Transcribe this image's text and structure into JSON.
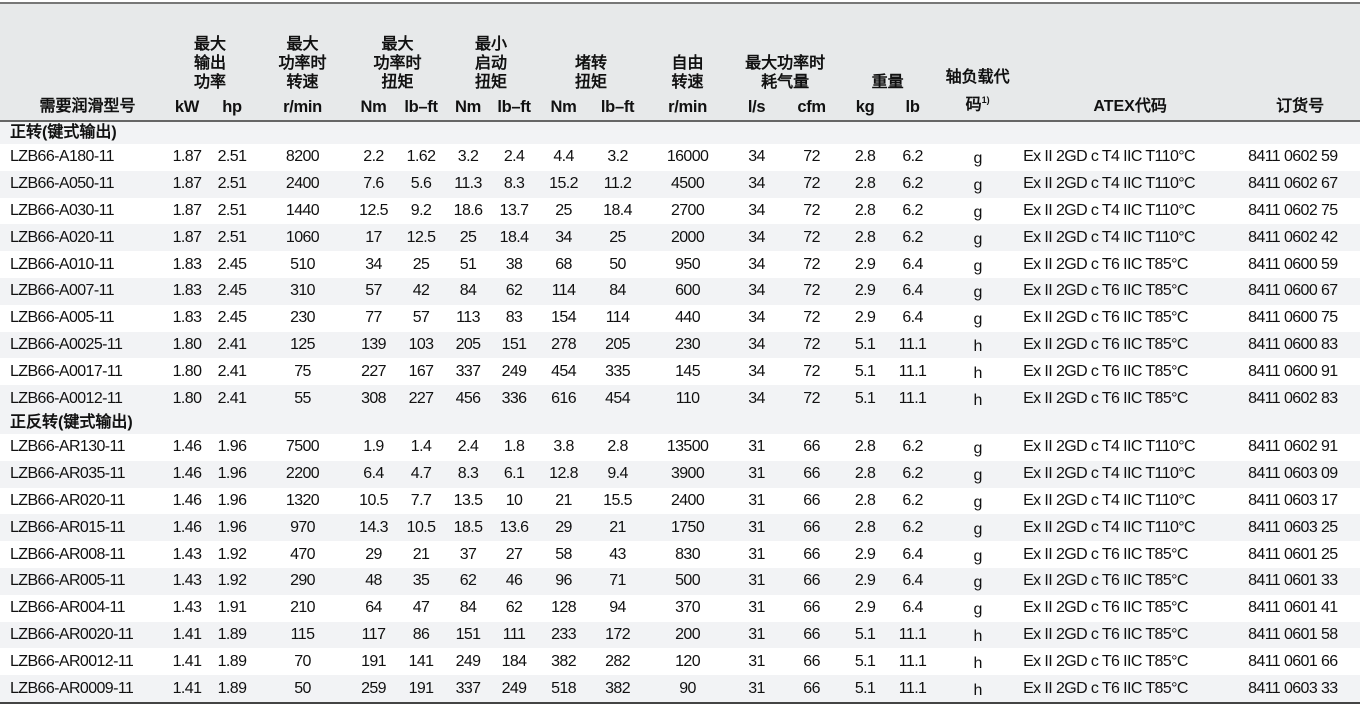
{
  "header": {
    "model": "需要润滑型号",
    "groups": [
      {
        "label": "最大\n输出\n功率",
        "units": [
          "kW",
          "hp"
        ]
      },
      {
        "label": "最大\n功率时\n转速",
        "units": [
          "r/min"
        ]
      },
      {
        "label": "最大\n功率时\n扭矩",
        "units": [
          "Nm",
          "lb–ft"
        ]
      },
      {
        "label": "最小\n启动\n扭矩",
        "units": [
          "Nm",
          "lb–ft"
        ]
      },
      {
        "label": "堵转\n扭矩\n",
        "units": [
          "Nm",
          "lb–ft"
        ]
      },
      {
        "label": "自由\n转速\n",
        "units": [
          "r/min"
        ]
      },
      {
        "label": "最大功率时\n耗气量\n",
        "units": [
          "l/s",
          "cfm"
        ]
      },
      {
        "label": "重量\n",
        "units": [
          "kg",
          "lb"
        ]
      }
    ],
    "shaft_code": "轴负载代码",
    "shaft_code_note": "1)",
    "atex": "ATEX代码",
    "order": "订货号"
  },
  "sections": [
    {
      "title": "正转(键式输出)",
      "rows": [
        [
          "LZB66-A180-11",
          "1.87",
          "2.51",
          "8200",
          "2.2",
          "1.62",
          "3.2",
          "2.4",
          "4.4",
          "3.2",
          "16000",
          "34",
          "72",
          "2.8",
          "6.2",
          "g",
          "Ex II 2GD c T4 IIC T110°C",
          "8411 0602 59"
        ],
        [
          "LZB66-A050-11",
          "1.87",
          "2.51",
          "2400",
          "7.6",
          "5.6",
          "11.3",
          "8.3",
          "15.2",
          "11.2",
          "4500",
          "34",
          "72",
          "2.8",
          "6.2",
          "g",
          "Ex II 2GD c T4 IIC T110°C",
          "8411 0602 67"
        ],
        [
          "LZB66-A030-11",
          "1.87",
          "2.51",
          "1440",
          "12.5",
          "9.2",
          "18.6",
          "13.7",
          "25",
          "18.4",
          "2700",
          "34",
          "72",
          "2.8",
          "6.2",
          "g",
          "Ex II 2GD c T4 IIC T110°C",
          "8411 0602 75"
        ],
        [
          "LZB66-A020-11",
          "1.87",
          "2.51",
          "1060",
          "17",
          "12.5",
          "25",
          "18.4",
          "34",
          "25",
          "2000",
          "34",
          "72",
          "2.8",
          "6.2",
          "g",
          "Ex II 2GD c T4 IIC T110°C",
          "8411 0602 42"
        ],
        [
          "LZB66-A010-11",
          "1.83",
          "2.45",
          "510",
          "34",
          "25",
          "51",
          "38",
          "68",
          "50",
          "950",
          "34",
          "72",
          "2.9",
          "6.4",
          "g",
          "Ex II 2GD c T6 IIC T85°C",
          "8411 0600 59"
        ],
        [
          "LZB66-A007-11",
          "1.83",
          "2.45",
          "310",
          "57",
          "42",
          "84",
          "62",
          "114",
          "84",
          "600",
          "34",
          "72",
          "2.9",
          "6.4",
          "g",
          "Ex II 2GD c T6 IIC T85°C",
          "8411 0600 67"
        ],
        [
          "LZB66-A005-11",
          "1.83",
          "2.45",
          "230",
          "77",
          "57",
          "113",
          "83",
          "154",
          "114",
          "440",
          "34",
          "72",
          "2.9",
          "6.4",
          "g",
          "Ex II 2GD c T6 IIC T85°C",
          "8411 0600 75"
        ],
        [
          "LZB66-A0025-11",
          "1.80",
          "2.41",
          "125",
          "139",
          "103",
          "205",
          "151",
          "278",
          "205",
          "230",
          "34",
          "72",
          "5.1",
          "11.1",
          "h",
          "Ex II 2GD c T6 IIC T85°C",
          "8411 0600 83"
        ],
        [
          "LZB66-A0017-11",
          "1.80",
          "2.41",
          "75",
          "227",
          "167",
          "337",
          "249",
          "454",
          "335",
          "145",
          "34",
          "72",
          "5.1",
          "11.1",
          "h",
          "Ex II 2GD c T6 IIC T85°C",
          "8411 0600 91"
        ],
        [
          "LZB66-A0012-11",
          "1.80",
          "2.41",
          "55",
          "308",
          "227",
          "456",
          "336",
          "616",
          "454",
          "110",
          "34",
          "72",
          "5.1",
          "11.1",
          "h",
          "Ex II 2GD c T6 IIC T85°C",
          "8411 0602 83"
        ]
      ]
    },
    {
      "title": "正反转(键式输出)",
      "rows": [
        [
          "LZB66-AR130-11",
          "1.46",
          "1.96",
          "7500",
          "1.9",
          "1.4",
          "2.4",
          "1.8",
          "3.8",
          "2.8",
          "13500",
          "31",
          "66",
          "2.8",
          "6.2",
          "g",
          "Ex II 2GD c T4 IIC T110°C",
          "8411 0602 91"
        ],
        [
          "LZB66-AR035-11",
          "1.46",
          "1.96",
          "2200",
          "6.4",
          "4.7",
          "8.3",
          "6.1",
          "12.8",
          "9.4",
          "3900",
          "31",
          "66",
          "2.8",
          "6.2",
          "g",
          "Ex II 2GD c T4 IIC T110°C",
          "8411 0603 09"
        ],
        [
          "LZB66-AR020-11",
          "1.46",
          "1.96",
          "1320",
          "10.5",
          "7.7",
          "13.5",
          "10",
          "21",
          "15.5",
          "2400",
          "31",
          "66",
          "2.8",
          "6.2",
          "g",
          "Ex II 2GD c T4 IIC T110°C",
          "8411 0603 17"
        ],
        [
          "LZB66-AR015-11",
          "1.46",
          "1.96",
          "970",
          "14.3",
          "10.5",
          "18.5",
          "13.6",
          "29",
          "21",
          "1750",
          "31",
          "66",
          "2.8",
          "6.2",
          "g",
          "Ex II 2GD c T4 IIC T110°C",
          "8411 0603 25"
        ],
        [
          "LZB66-AR008-11",
          "1.43",
          "1.92",
          "470",
          "29",
          "21",
          "37",
          "27",
          "58",
          "43",
          "830",
          "31",
          "66",
          "2.9",
          "6.4",
          "g",
          "Ex II 2GD c T6 IIC T85°C",
          "8411 0601 25"
        ],
        [
          "LZB66-AR005-11",
          "1.43",
          "1.92",
          "290",
          "48",
          "35",
          "62",
          "46",
          "96",
          "71",
          "500",
          "31",
          "66",
          "2.9",
          "6.4",
          "g",
          "Ex II 2GD c T6 IIC T85°C",
          "8411 0601 33"
        ],
        [
          "LZB66-AR004-11",
          "1.43",
          "1.91",
          "210",
          "64",
          "47",
          "84",
          "62",
          "128",
          "94",
          "370",
          "31",
          "66",
          "2.9",
          "6.4",
          "g",
          "Ex II 2GD c T6 IIC T85°C",
          "8411 0601 41"
        ],
        [
          "LZB66-AR0020-11",
          "1.41",
          "1.89",
          "115",
          "117",
          "86",
          "151",
          "111",
          "233",
          "172",
          "200",
          "31",
          "66",
          "5.1",
          "11.1",
          "h",
          "Ex II 2GD c T6 IIC T85°C",
          "8411 0601 58"
        ],
        [
          "LZB66-AR0012-11",
          "1.41",
          "1.89",
          "70",
          "191",
          "141",
          "249",
          "184",
          "382",
          "282",
          "120",
          "31",
          "66",
          "5.1",
          "11.1",
          "h",
          "Ex II 2GD c T6 IIC T85°C",
          "8411 0601 66"
        ],
        [
          "LZB66-AR0009-11",
          "1.41",
          "1.89",
          "50",
          "259",
          "191",
          "337",
          "249",
          "518",
          "382",
          "90",
          "31",
          "66",
          "5.1",
          "11.1",
          "h",
          "Ex II 2GD c T6 IIC T85°C",
          "8411 0603 33"
        ]
      ]
    }
  ]
}
